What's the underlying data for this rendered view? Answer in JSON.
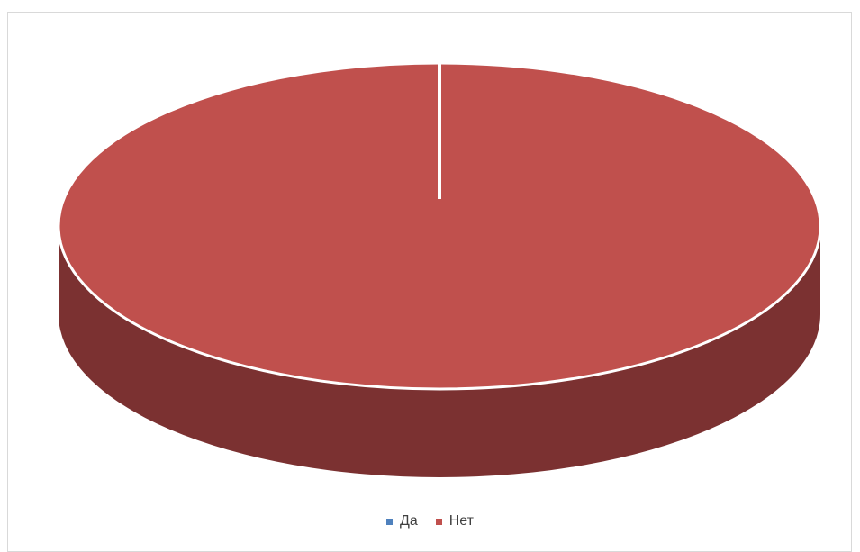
{
  "chart_data": {
    "type": "pie",
    "subtype": "3d",
    "categories": [
      "Да",
      "Нет"
    ],
    "values": [
      0,
      100
    ],
    "colors": {
      "Да": "#4f81bd",
      "Нет": "#c0504d",
      "Нет_side": "#7b3131"
    },
    "title": "",
    "legend_position": "bottom"
  }
}
